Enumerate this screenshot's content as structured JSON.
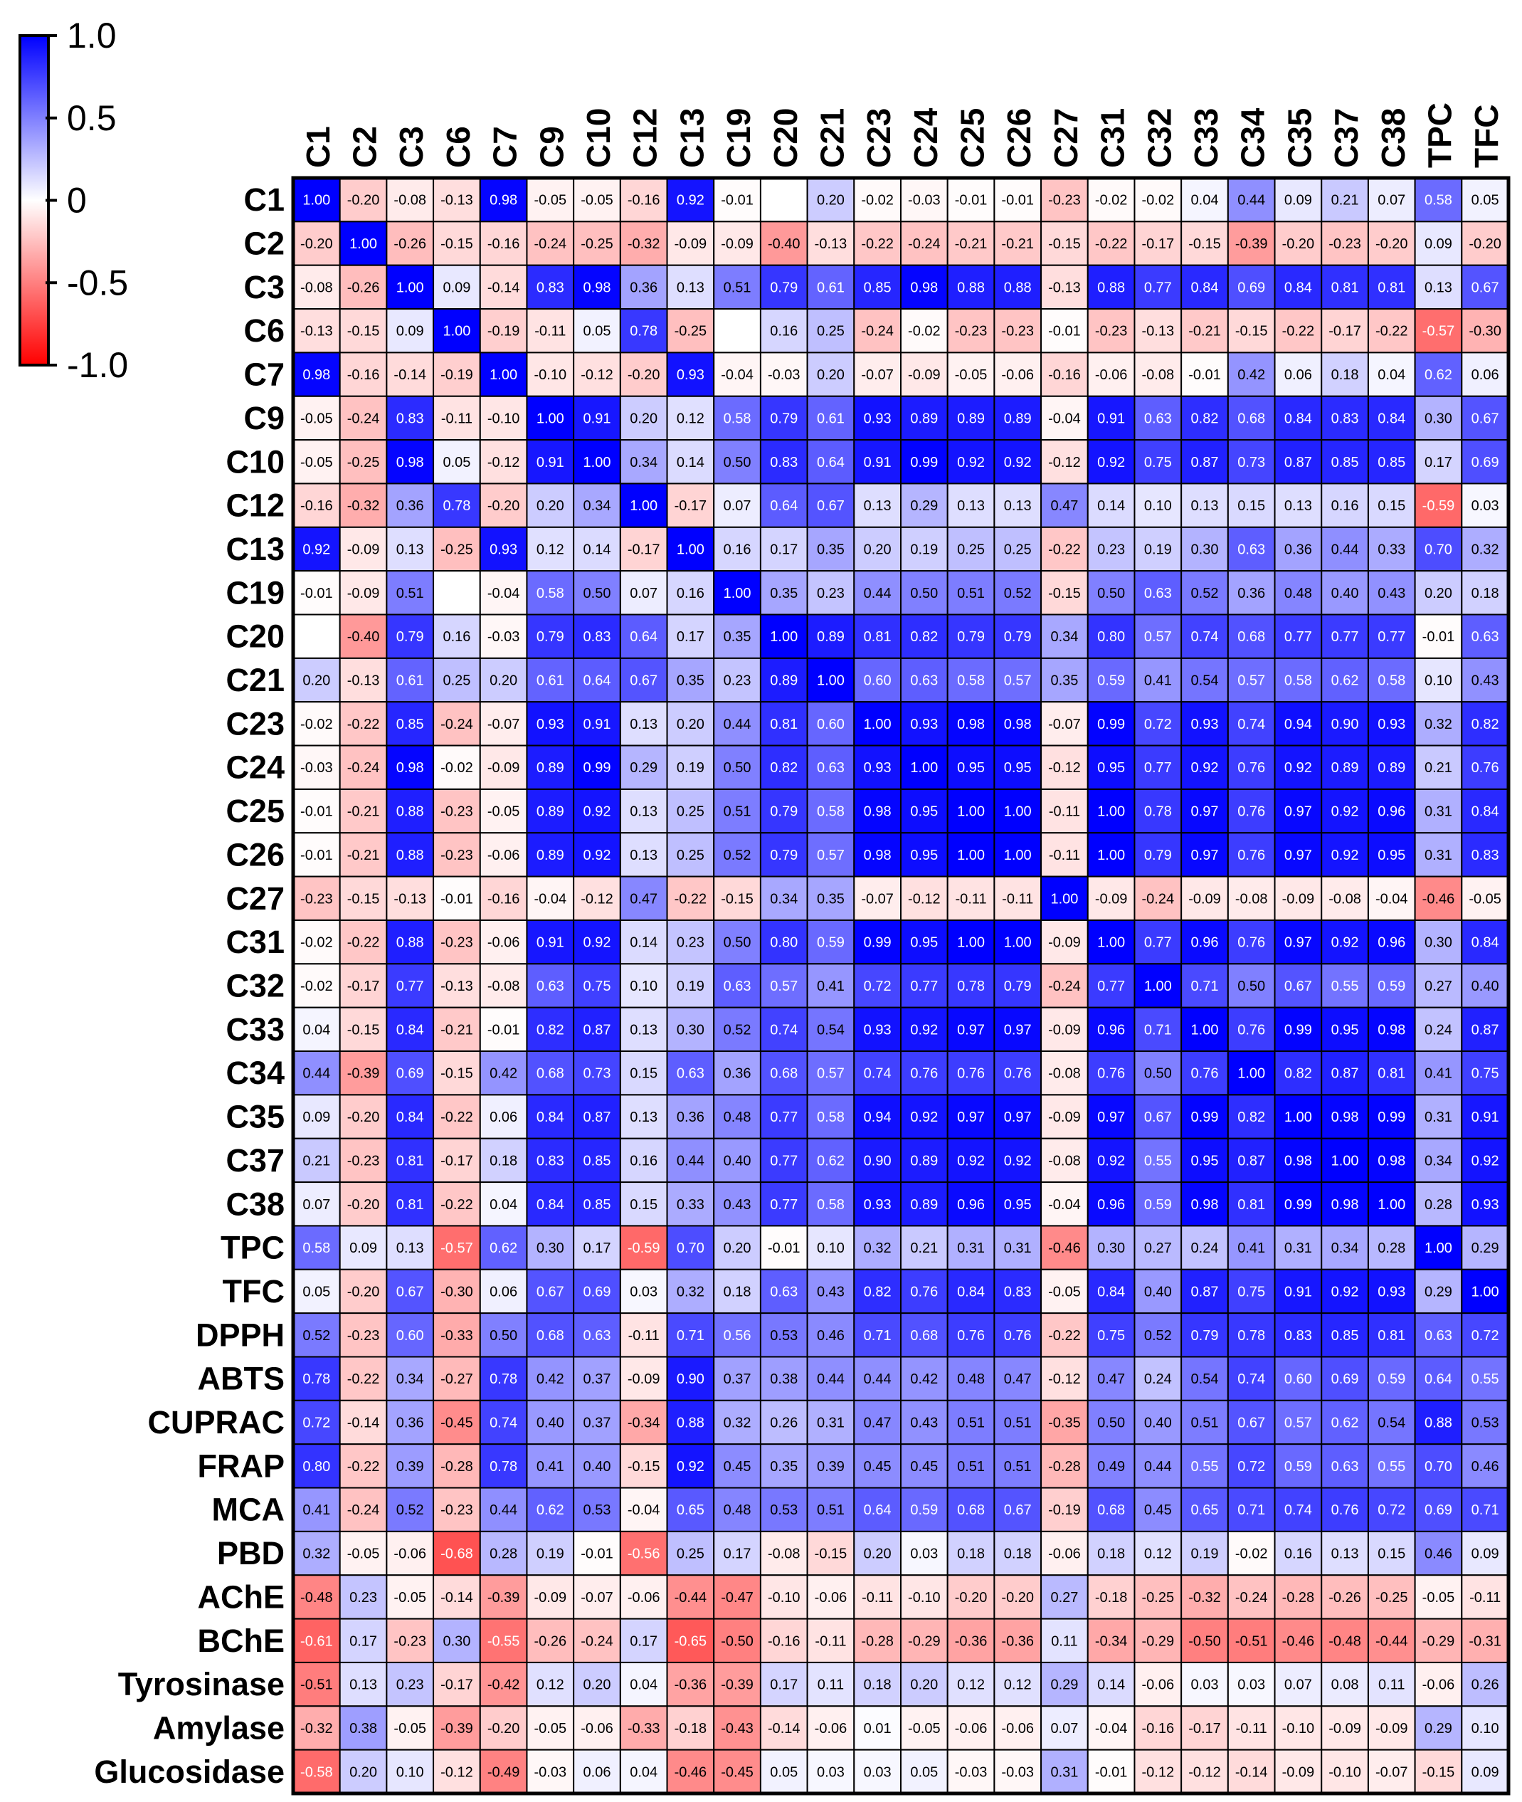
{
  "chart_data": {
    "type": "heatmap",
    "title": "",
    "columns": [
      "C1",
      "C2",
      "C3",
      "C6",
      "C7",
      "C9",
      "C10",
      "C12",
      "C13",
      "C19",
      "C20",
      "C21",
      "C23",
      "C24",
      "C25",
      "C26",
      "C27",
      "C31",
      "C32",
      "C33",
      "C34",
      "C35",
      "C37",
      "C38",
      "TPC",
      "TFC"
    ],
    "rows": [
      "C1",
      "C2",
      "C3",
      "C6",
      "C7",
      "C9",
      "C10",
      "C12",
      "C13",
      "C19",
      "C20",
      "C21",
      "C23",
      "C24",
      "C25",
      "C26",
      "C27",
      "C31",
      "C32",
      "C33",
      "C34",
      "C35",
      "C37",
      "C38",
      "TPC",
      "TFC",
      "DPPH",
      "ABTS",
      "CUPRAC",
      "FRAP",
      "MCA",
      "PBD",
      "AChE",
      "BChE",
      "Tyrosinase",
      "Amylase",
      "Glucosidase"
    ],
    "values": [
      [
        1.0,
        -0.2,
        -0.08,
        -0.13,
        0.98,
        -0.05,
        -0.05,
        -0.16,
        0.92,
        -0.01,
        null,
        0.2,
        -0.02,
        -0.03,
        -0.01,
        -0.01,
        -0.23,
        -0.02,
        -0.02,
        0.04,
        0.44,
        0.09,
        0.21,
        0.07,
        0.58,
        0.05
      ],
      [
        -0.2,
        1.0,
        -0.26,
        -0.15,
        -0.16,
        -0.24,
        -0.25,
        -0.32,
        -0.09,
        -0.09,
        -0.4,
        -0.13,
        -0.22,
        -0.24,
        -0.21,
        -0.21,
        -0.15,
        -0.22,
        -0.17,
        -0.15,
        -0.39,
        -0.2,
        -0.23,
        -0.2,
        0.09,
        -0.2
      ],
      [
        -0.08,
        -0.26,
        1.0,
        0.09,
        -0.14,
        0.83,
        0.98,
        0.36,
        0.13,
        0.51,
        0.79,
        0.61,
        0.85,
        0.98,
        0.88,
        0.88,
        -0.13,
        0.88,
        0.77,
        0.84,
        0.69,
        0.84,
        0.81,
        0.81,
        0.13,
        0.67
      ],
      [
        -0.13,
        -0.15,
        0.09,
        1.0,
        -0.19,
        -0.11,
        0.05,
        0.78,
        -0.25,
        null,
        0.16,
        0.25,
        -0.24,
        -0.02,
        -0.23,
        -0.23,
        -0.01,
        -0.23,
        -0.13,
        -0.21,
        -0.15,
        -0.22,
        -0.17,
        -0.22,
        -0.57,
        -0.3
      ],
      [
        0.98,
        -0.16,
        -0.14,
        -0.19,
        1.0,
        -0.1,
        -0.12,
        -0.2,
        0.93,
        -0.04,
        -0.03,
        0.2,
        -0.07,
        -0.09,
        -0.05,
        -0.06,
        -0.16,
        -0.06,
        -0.08,
        -0.01,
        0.42,
        0.06,
        0.18,
        0.04,
        0.62,
        0.06
      ],
      [
        -0.05,
        -0.24,
        0.83,
        -0.11,
        -0.1,
        1.0,
        0.91,
        0.2,
        0.12,
        0.58,
        0.79,
        0.61,
        0.93,
        0.89,
        0.89,
        0.89,
        -0.04,
        0.91,
        0.63,
        0.82,
        0.68,
        0.84,
        0.83,
        0.84,
        0.3,
        0.67
      ],
      [
        -0.05,
        -0.25,
        0.98,
        0.05,
        -0.12,
        0.91,
        1.0,
        0.34,
        0.14,
        0.5,
        0.83,
        0.64,
        0.91,
        0.99,
        0.92,
        0.92,
        -0.12,
        0.92,
        0.75,
        0.87,
        0.73,
        0.87,
        0.85,
        0.85,
        0.17,
        0.69
      ],
      [
        -0.16,
        -0.32,
        0.36,
        0.78,
        -0.2,
        0.2,
        0.34,
        1.0,
        -0.17,
        0.07,
        0.64,
        0.67,
        0.13,
        0.29,
        0.13,
        0.13,
        0.47,
        0.14,
        0.1,
        0.13,
        0.15,
        0.13,
        0.16,
        0.15,
        -0.59,
        0.03
      ],
      [
        0.92,
        -0.09,
        0.13,
        -0.25,
        0.93,
        0.12,
        0.14,
        -0.17,
        1.0,
        0.16,
        0.17,
        0.35,
        0.2,
        0.19,
        0.25,
        0.25,
        -0.22,
        0.23,
        0.19,
        0.3,
        0.63,
        0.36,
        0.44,
        0.33,
        0.7,
        0.32
      ],
      [
        -0.01,
        -0.09,
        0.51,
        null,
        -0.04,
        0.58,
        0.5,
        0.07,
        0.16,
        1.0,
        0.35,
        0.23,
        0.44,
        0.5,
        0.51,
        0.52,
        -0.15,
        0.5,
        0.63,
        0.52,
        0.36,
        0.48,
        0.4,
        0.43,
        0.2,
        0.18
      ],
      [
        null,
        -0.4,
        0.79,
        0.16,
        -0.03,
        0.79,
        0.83,
        0.64,
        0.17,
        0.35,
        1.0,
        0.89,
        0.81,
        0.82,
        0.79,
        0.79,
        0.34,
        0.8,
        0.57,
        0.74,
        0.68,
        0.77,
        0.77,
        0.77,
        -0.01,
        0.63
      ],
      [
        0.2,
        -0.13,
        0.61,
        0.25,
        0.2,
        0.61,
        0.64,
        0.67,
        0.35,
        0.23,
        0.89,
        1.0,
        0.6,
        0.63,
        0.58,
        0.57,
        0.35,
        0.59,
        0.41,
        0.54,
        0.57,
        0.58,
        0.62,
        0.58,
        0.1,
        0.43
      ],
      [
        -0.02,
        -0.22,
        0.85,
        -0.24,
        -0.07,
        0.93,
        0.91,
        0.13,
        0.2,
        0.44,
        0.81,
        0.6,
        1.0,
        0.93,
        0.98,
        0.98,
        -0.07,
        0.99,
        0.72,
        0.93,
        0.74,
        0.94,
        0.9,
        0.93,
        0.32,
        0.82
      ],
      [
        -0.03,
        -0.24,
        0.98,
        -0.02,
        -0.09,
        0.89,
        0.99,
        0.29,
        0.19,
        0.5,
        0.82,
        0.63,
        0.93,
        1.0,
        0.95,
        0.95,
        -0.12,
        0.95,
        0.77,
        0.92,
        0.76,
        0.92,
        0.89,
        0.89,
        0.21,
        0.76
      ],
      [
        -0.01,
        -0.21,
        0.88,
        -0.23,
        -0.05,
        0.89,
        0.92,
        0.13,
        0.25,
        0.51,
        0.79,
        0.58,
        0.98,
        0.95,
        1.0,
        1.0,
        -0.11,
        1.0,
        0.78,
        0.97,
        0.76,
        0.97,
        0.92,
        0.96,
        0.31,
        0.84
      ],
      [
        -0.01,
        -0.21,
        0.88,
        -0.23,
        -0.06,
        0.89,
        0.92,
        0.13,
        0.25,
        0.52,
        0.79,
        0.57,
        0.98,
        0.95,
        1.0,
        1.0,
        -0.11,
        1.0,
        0.79,
        0.97,
        0.76,
        0.97,
        0.92,
        0.95,
        0.31,
        0.83
      ],
      [
        -0.23,
        -0.15,
        -0.13,
        -0.01,
        -0.16,
        -0.04,
        -0.12,
        0.47,
        -0.22,
        -0.15,
        0.34,
        0.35,
        -0.07,
        -0.12,
        -0.11,
        -0.11,
        1.0,
        -0.09,
        -0.24,
        -0.09,
        -0.08,
        -0.09,
        -0.08,
        -0.04,
        -0.46,
        -0.05
      ],
      [
        -0.02,
        -0.22,
        0.88,
        -0.23,
        -0.06,
        0.91,
        0.92,
        0.14,
        0.23,
        0.5,
        0.8,
        0.59,
        0.99,
        0.95,
        1.0,
        1.0,
        -0.09,
        1.0,
        0.77,
        0.96,
        0.76,
        0.97,
        0.92,
        0.96,
        0.3,
        0.84
      ],
      [
        -0.02,
        -0.17,
        0.77,
        -0.13,
        -0.08,
        0.63,
        0.75,
        0.1,
        0.19,
        0.63,
        0.57,
        0.41,
        0.72,
        0.77,
        0.78,
        0.79,
        -0.24,
        0.77,
        1.0,
        0.71,
        0.5,
        0.67,
        0.55,
        0.59,
        0.27,
        0.4
      ],
      [
        0.04,
        -0.15,
        0.84,
        -0.21,
        -0.01,
        0.82,
        0.87,
        0.13,
        0.3,
        0.52,
        0.74,
        0.54,
        0.93,
        0.92,
        0.97,
        0.97,
        -0.09,
        0.96,
        0.71,
        1.0,
        0.76,
        0.99,
        0.95,
        0.98,
        0.24,
        0.87
      ],
      [
        0.44,
        -0.39,
        0.69,
        -0.15,
        0.42,
        0.68,
        0.73,
        0.15,
        0.63,
        0.36,
        0.68,
        0.57,
        0.74,
        0.76,
        0.76,
        0.76,
        -0.08,
        0.76,
        0.5,
        0.76,
        1.0,
        0.82,
        0.87,
        0.81,
        0.41,
        0.75
      ],
      [
        0.09,
        -0.2,
        0.84,
        -0.22,
        0.06,
        0.84,
        0.87,
        0.13,
        0.36,
        0.48,
        0.77,
        0.58,
        0.94,
        0.92,
        0.97,
        0.97,
        -0.09,
        0.97,
        0.67,
        0.99,
        0.82,
        1.0,
        0.98,
        0.99,
        0.31,
        0.91
      ],
      [
        0.21,
        -0.23,
        0.81,
        -0.17,
        0.18,
        0.83,
        0.85,
        0.16,
        0.44,
        0.4,
        0.77,
        0.62,
        0.9,
        0.89,
        0.92,
        0.92,
        -0.08,
        0.92,
        0.55,
        0.95,
        0.87,
        0.98,
        1.0,
        0.98,
        0.34,
        0.92
      ],
      [
        0.07,
        -0.2,
        0.81,
        -0.22,
        0.04,
        0.84,
        0.85,
        0.15,
        0.33,
        0.43,
        0.77,
        0.58,
        0.93,
        0.89,
        0.96,
        0.95,
        -0.04,
        0.96,
        0.59,
        0.98,
        0.81,
        0.99,
        0.98,
        1.0,
        0.28,
        0.93
      ],
      [
        0.58,
        0.09,
        0.13,
        -0.57,
        0.62,
        0.3,
        0.17,
        -0.59,
        0.7,
        0.2,
        -0.01,
        0.1,
        0.32,
        0.21,
        0.31,
        0.31,
        -0.46,
        0.3,
        0.27,
        0.24,
        0.41,
        0.31,
        0.34,
        0.28,
        1.0,
        0.29
      ],
      [
        0.05,
        -0.2,
        0.67,
        -0.3,
        0.06,
        0.67,
        0.69,
        0.03,
        0.32,
        0.18,
        0.63,
        0.43,
        0.82,
        0.76,
        0.84,
        0.83,
        -0.05,
        0.84,
        0.4,
        0.87,
        0.75,
        0.91,
        0.92,
        0.93,
        0.29,
        1.0
      ],
      [
        0.52,
        -0.23,
        0.6,
        -0.33,
        0.5,
        0.68,
        0.63,
        -0.11,
        0.71,
        0.56,
        0.53,
        0.46,
        0.71,
        0.68,
        0.76,
        0.76,
        -0.22,
        0.75,
        0.52,
        0.79,
        0.78,
        0.83,
        0.85,
        0.81,
        0.63,
        0.72
      ],
      [
        0.78,
        -0.22,
        0.34,
        -0.27,
        0.78,
        0.42,
        0.37,
        -0.09,
        0.9,
        0.37,
        0.38,
        0.44,
        0.44,
        0.42,
        0.48,
        0.47,
        -0.12,
        0.47,
        0.24,
        0.54,
        0.74,
        0.6,
        0.69,
        0.59,
        0.64,
        0.55
      ],
      [
        0.72,
        -0.14,
        0.36,
        -0.45,
        0.74,
        0.4,
        0.37,
        -0.34,
        0.88,
        0.32,
        0.26,
        0.31,
        0.47,
        0.43,
        0.51,
        0.51,
        -0.35,
        0.5,
        0.4,
        0.51,
        0.67,
        0.57,
        0.62,
        0.54,
        0.88,
        0.53
      ],
      [
        0.8,
        -0.22,
        0.39,
        -0.28,
        0.78,
        0.41,
        0.4,
        -0.15,
        0.92,
        0.45,
        0.35,
        0.39,
        0.45,
        0.45,
        0.51,
        0.51,
        -0.28,
        0.49,
        0.44,
        0.55,
        0.72,
        0.59,
        0.63,
        0.55,
        0.7,
        0.46
      ],
      [
        0.41,
        -0.24,
        0.52,
        -0.23,
        0.44,
        0.62,
        0.53,
        -0.04,
        0.65,
        0.48,
        0.53,
        0.51,
        0.64,
        0.59,
        0.68,
        0.67,
        -0.19,
        0.68,
        0.45,
        0.65,
        0.71,
        0.74,
        0.76,
        0.72,
        0.69,
        0.71
      ],
      [
        0.32,
        -0.05,
        -0.06,
        -0.68,
        0.28,
        0.19,
        -0.01,
        -0.56,
        0.25,
        0.17,
        -0.08,
        -0.15,
        0.2,
        0.03,
        0.18,
        0.18,
        -0.06,
        0.18,
        0.12,
        0.19,
        -0.02,
        0.16,
        0.13,
        0.15,
        0.46,
        0.09
      ],
      [
        -0.48,
        0.23,
        -0.05,
        -0.14,
        -0.39,
        -0.09,
        -0.07,
        -0.06,
        -0.44,
        -0.47,
        -0.1,
        -0.06,
        -0.11,
        -0.1,
        -0.2,
        -0.2,
        0.27,
        -0.18,
        -0.25,
        -0.32,
        -0.24,
        -0.28,
        -0.26,
        -0.25,
        -0.05,
        -0.11
      ],
      [
        -0.61,
        0.17,
        -0.23,
        0.3,
        -0.55,
        -0.26,
        -0.24,
        0.17,
        -0.65,
        -0.5,
        -0.16,
        -0.11,
        -0.28,
        -0.29,
        -0.36,
        -0.36,
        0.11,
        -0.34,
        -0.29,
        -0.5,
        -0.51,
        -0.46,
        -0.48,
        -0.44,
        -0.29,
        -0.31
      ],
      [
        -0.51,
        0.13,
        0.23,
        -0.17,
        -0.42,
        0.12,
        0.2,
        0.04,
        -0.36,
        -0.39,
        0.17,
        0.11,
        0.18,
        0.2,
        0.12,
        0.12,
        0.29,
        0.14,
        -0.06,
        0.03,
        0.03,
        0.07,
        0.08,
        0.11,
        -0.06,
        0.26
      ],
      [
        -0.32,
        0.38,
        -0.05,
        -0.39,
        -0.2,
        -0.05,
        -0.06,
        -0.33,
        -0.18,
        -0.43,
        -0.14,
        -0.06,
        0.01,
        -0.05,
        -0.06,
        -0.06,
        0.07,
        -0.04,
        -0.16,
        -0.17,
        -0.11,
        -0.1,
        -0.09,
        -0.09,
        0.29,
        0.1
      ],
      [
        -0.58,
        0.2,
        0.1,
        -0.12,
        -0.49,
        -0.03,
        0.06,
        0.04,
        -0.46,
        -0.45,
        0.05,
        0.03,
        0.03,
        0.05,
        -0.03,
        -0.03,
        0.31,
        -0.01,
        -0.12,
        -0.12,
        -0.14,
        -0.09,
        -0.1,
        -0.07,
        -0.15,
        0.09
      ]
    ],
    "colorbar": {
      "ticks": [
        1.0,
        0.5,
        0,
        -0.5,
        -1.0
      ],
      "tick_labels": [
        "1.0",
        "0.5",
        "0",
        "-0.5",
        "-1.0"
      ],
      "range": [
        -1.0,
        1.0
      ],
      "colors": {
        "max": "#0000ff",
        "mid": "#ffffff",
        "min": "#ff0000"
      }
    },
    "legend_position": "top-left",
    "xlabel": "",
    "ylabel": ""
  }
}
